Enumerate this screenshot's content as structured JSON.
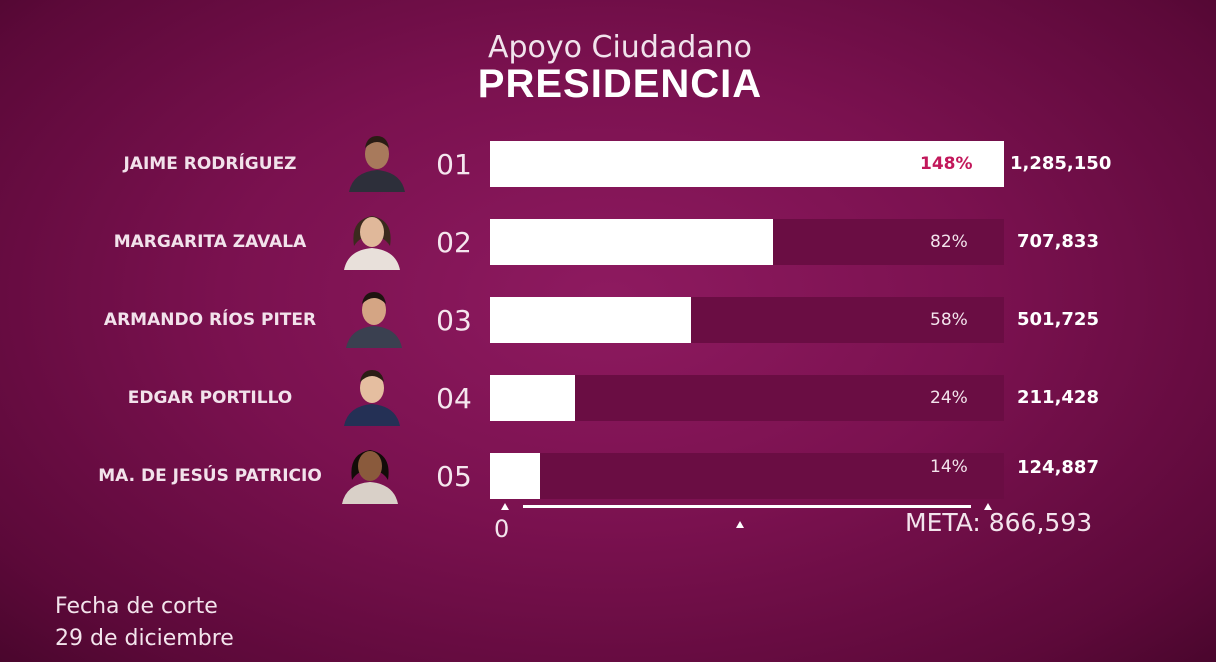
{
  "header": {
    "subtitle": "Apoyo Ciudadano",
    "title": "PRESIDENCIA"
  },
  "chart_data": {
    "type": "bar",
    "title": "PRESIDENCIA",
    "subtitle": "Apoyo Ciudadano",
    "orientation": "horizontal",
    "categories": [
      "JAIME RODRÍGUEZ",
      "MARGARITA ZAVALA",
      "ARMANDO RÍOS PITER",
      "EDGAR PORTILLO",
      "MA. DE JESÚS PATRICIO"
    ],
    "numbers": [
      "01",
      "02",
      "03",
      "04",
      "05"
    ],
    "values": [
      1285150,
      707833,
      501725,
      211428,
      124887
    ],
    "value_labels": [
      "1,285,150",
      "707,833",
      "501,725",
      "211,428",
      "124,887"
    ],
    "percent_labels": [
      "148%",
      "82%",
      "58%",
      "24%",
      "14%"
    ],
    "percents": [
      148,
      82,
      58,
      24,
      14
    ],
    "highlight_index": 0,
    "goal": 866593,
    "axis": {
      "start_label": "0",
      "goal_label": "META: 866,593"
    },
    "bar_color": "#ffffff",
    "track_color": "#6a0d43",
    "highlight_color": "#c2185b"
  },
  "footer": {
    "line1": "Fecha de corte",
    "line2": "29 de diciembre"
  },
  "colors": {
    "background": "#7a114f",
    "text": "#ffffff"
  }
}
